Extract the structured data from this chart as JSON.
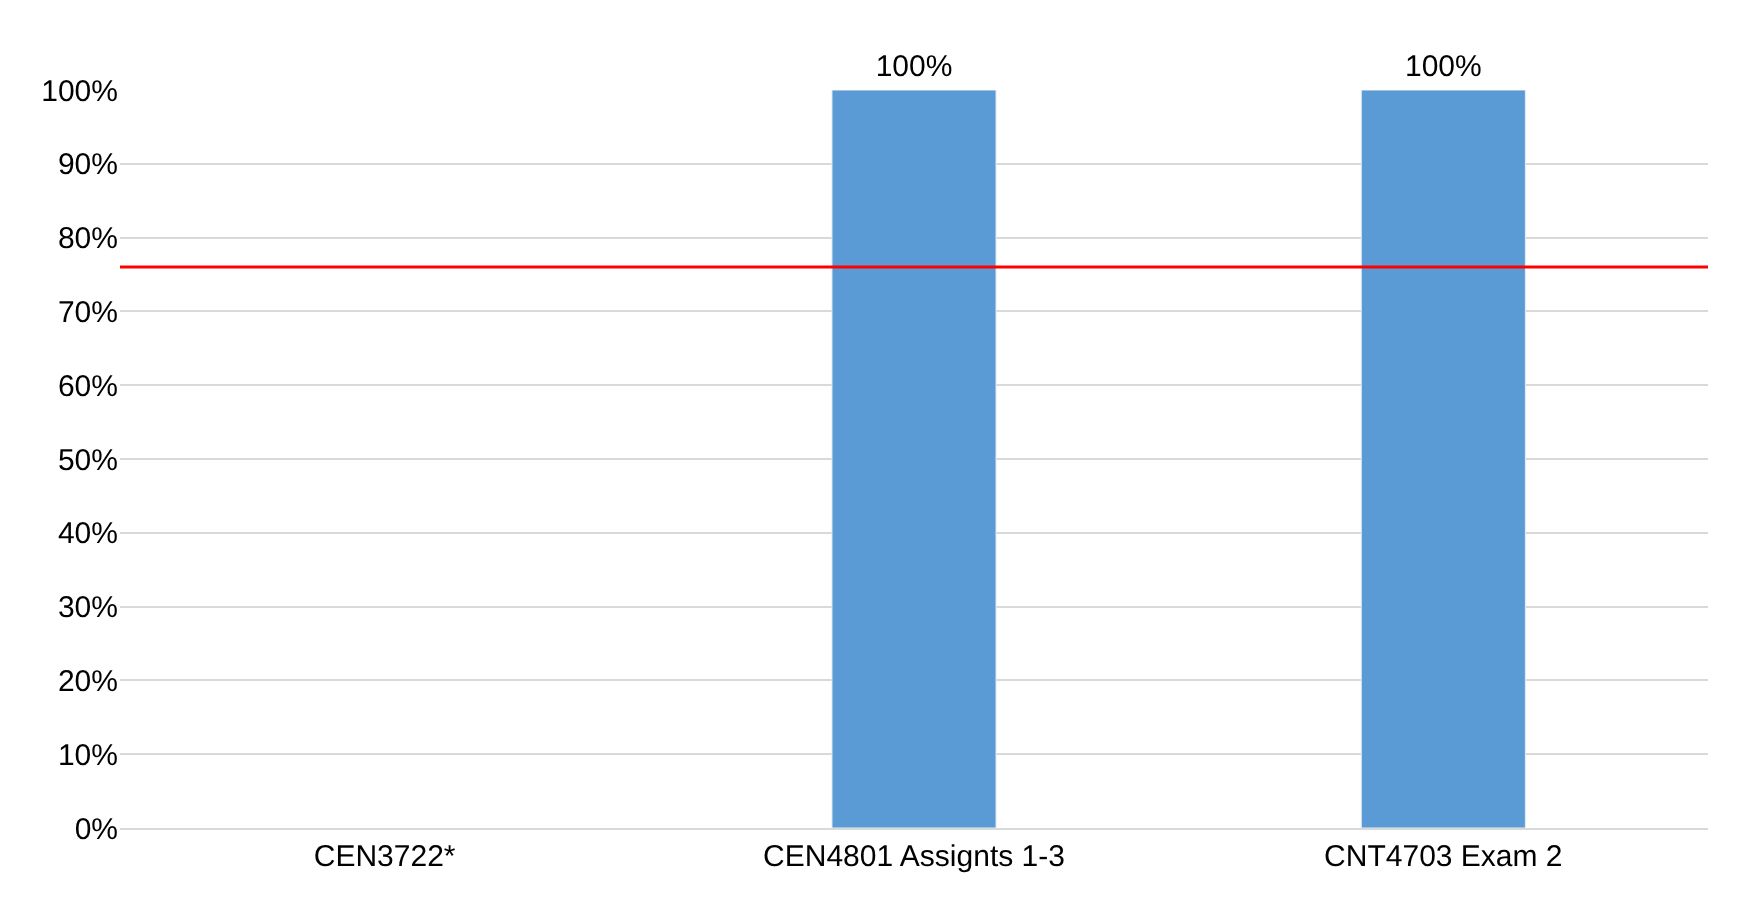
{
  "chart_data": {
    "type": "bar",
    "categories": [
      "CEN3722*",
      "CEN4801 Assignts 1-3",
      "CNT4703 Exam 2"
    ],
    "values": [
      null,
      100,
      100
    ],
    "value_labels": [
      null,
      "100%",
      "100%"
    ],
    "color": "#5b9bd5",
    "ylim": [
      0,
      100
    ],
    "yticks": [
      {
        "value": 0,
        "label": "0%"
      },
      {
        "value": 10,
        "label": "10%"
      },
      {
        "value": 20,
        "label": "20%"
      },
      {
        "value": 30,
        "label": "30%"
      },
      {
        "value": 40,
        "label": "40%"
      },
      {
        "value": 50,
        "label": "50%"
      },
      {
        "value": 60,
        "label": "60%"
      },
      {
        "value": 70,
        "label": "70%"
      },
      {
        "value": 80,
        "label": "80%"
      },
      {
        "value": 90,
        "label": "90%"
      },
      {
        "value": 100,
        "label": "100%"
      }
    ],
    "ref_lines": [
      {
        "axis": "y",
        "value": 76,
        "label": null,
        "color": "#ff0000"
      }
    ],
    "grid": "y",
    "legend": false
  }
}
